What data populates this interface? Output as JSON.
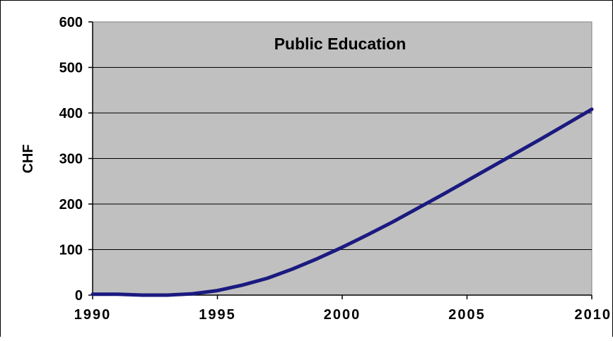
{
  "chart_data": {
    "type": "line",
    "title": "Public Education",
    "xlabel": "",
    "ylabel": "CHF",
    "xlim": [
      1990,
      2010
    ],
    "ylim": [
      0,
      600
    ],
    "x_ticks": [
      "1990",
      "1995",
      "2000",
      "2005",
      "2010"
    ],
    "y_ticks": [
      "0",
      "100",
      "200",
      "300",
      "400",
      "500",
      "600"
    ],
    "grid": "horizontal",
    "legend": "none",
    "plot_background": "#c0c0c0",
    "series": [
      {
        "color": "#1a1a80",
        "x": [
          1990,
          1991,
          1992,
          1993,
          1994,
          1995,
          1996,
          1997,
          1998,
          1999,
          2000,
          2001,
          2002,
          2003,
          2004,
          2005,
          2006,
          2007,
          2008,
          2009,
          2010
        ],
        "y": [
          2,
          2,
          0,
          0,
          3,
          10,
          22,
          37,
          57,
          80,
          105,
          132,
          160,
          190,
          220,
          251,
          282,
          313,
          344,
          376,
          408
        ]
      }
    ]
  }
}
